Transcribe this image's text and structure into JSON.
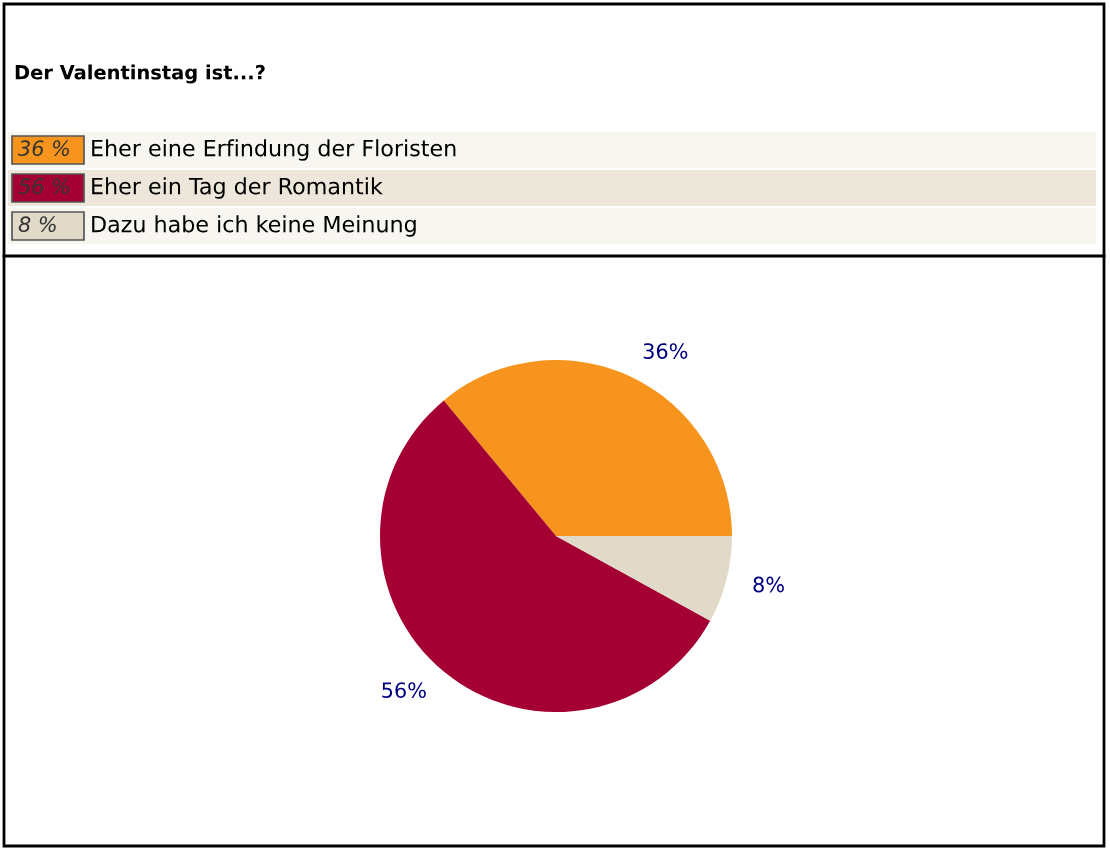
{
  "chart_data": {
    "type": "pie",
    "title": "Der Valentinstag ist...?",
    "categories": [
      "Eher eine Erfindung der Floristen",
      "Eher ein Tag der Romantik",
      "Dazu habe ich keine Meinung"
    ],
    "values": [
      36,
      56,
      8
    ],
    "colors": [
      "#f7941d",
      "#a50034",
      "#e2dac8"
    ],
    "value_labels": [
      "36%",
      "56%",
      "8%"
    ],
    "annotations": [
      "36 %",
      "56 %",
      "8 %"
    ],
    "legend": "top left"
  }
}
